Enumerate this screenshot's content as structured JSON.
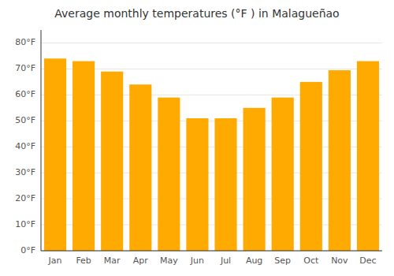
{
  "chart_data": {
    "type": "bar",
    "title": "Average monthly temperatures (°F ) in Malagueñao",
    "categories": [
      "Jan",
      "Feb",
      "Mar",
      "Apr",
      "May",
      "Jun",
      "Jul",
      "Aug",
      "Sep",
      "Oct",
      "Nov",
      "Dec"
    ],
    "values": [
      74.0,
      73.0,
      69.0,
      64.0,
      59.0,
      51.0,
      51.0,
      55.0,
      59.0,
      65.0,
      69.5,
      73.0
    ],
    "color": "#FFAA00",
    "ylim": [
      0,
      85
    ],
    "yticks": [
      {
        "value": 0,
        "label": "0°F"
      },
      {
        "value": 10,
        "label": "10°F"
      },
      {
        "value": 20,
        "label": "20°F"
      },
      {
        "value": 30,
        "label": "30°F"
      },
      {
        "value": 40,
        "label": "40°F"
      },
      {
        "value": 50,
        "label": "50°F"
      },
      {
        "value": 60,
        "label": "60°F"
      },
      {
        "value": 70,
        "label": "70°F"
      },
      {
        "value": 80,
        "label": "80°F"
      }
    ],
    "grid": true
  }
}
